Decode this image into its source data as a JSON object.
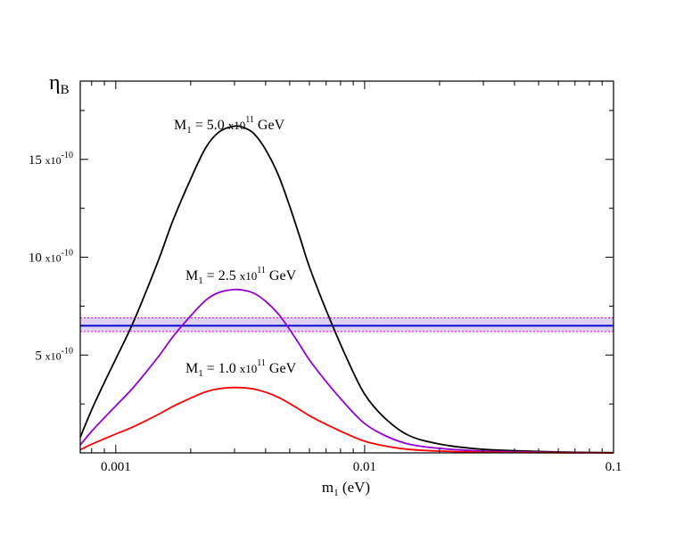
{
  "chart_data": {
    "type": "line",
    "title": "",
    "ylabel": "η",
    "ylabel_sub": "B",
    "xlabel": "m",
    "xlabel_sub": "1",
    "xlabel_unit": "(eV)",
    "x_scale": "log",
    "xlim": [
      0.00072,
      0.1
    ],
    "ylim": [
      0.0,
      1.9e-09
    ],
    "grid": false,
    "x_ticks": [
      {
        "value": 0.001,
        "label": "0.001"
      },
      {
        "value": 0.01,
        "label": "0.01"
      },
      {
        "value": 0.1,
        "label": "0.1"
      }
    ],
    "y_ticks": [
      {
        "value": 5e-10,
        "mantissa": "5",
        "base": "x10",
        "exp": "-10"
      },
      {
        "value": 1e-09,
        "mantissa": "10",
        "base": "x10",
        "exp": "-10"
      },
      {
        "value": 1.5e-09,
        "mantissa": "15",
        "base": "x10",
        "exp": "-10"
      }
    ],
    "series": [
      {
        "name": "M1 = 5.0 x10^11 GeV",
        "label_prefix": "M",
        "label_sub": "1",
        "label_mid": " = 5.0 ",
        "label_base": "x10",
        "label_exp": "11",
        "label_unit": " GeV",
        "color": "#000000",
        "x": [
          0.00072,
          0.0008,
          0.0009,
          0.001,
          0.00115,
          0.0013,
          0.0015,
          0.0017,
          0.002,
          0.0023,
          0.0026,
          0.003,
          0.0033,
          0.0036,
          0.004,
          0.0045,
          0.005,
          0.0055,
          0.006,
          0.007,
          0.0085,
          0.01,
          0.012,
          0.015,
          0.02,
          0.03,
          0.05,
          0.07,
          0.1
        ],
        "y": [
          8e-11,
          2.2e-10,
          3.6e-10,
          4.8e-10,
          6.4e-10,
          8e-10,
          1e-09,
          1.19e-09,
          1.4e-09,
          1.56e-09,
          1.64e-09,
          1.67e-09,
          1.66e-09,
          1.63e-09,
          1.55e-09,
          1.42e-09,
          1.26e-09,
          1.1e-09,
          9.5e-10,
          7.3e-10,
          4.8e-10,
          3e-10,
          1.8e-10,
          9e-11,
          4.5e-11,
          1.8e-11,
          7e-12,
          3e-12,
          1e-12
        ]
      },
      {
        "name": "M1 = 2.5 x10^11 GeV",
        "label_prefix": "M",
        "label_sub": "1",
        "label_mid": " = 2.5 ",
        "label_base": "x10",
        "label_exp": "11",
        "label_unit": " GeV",
        "color": "#9400D3",
        "x": [
          0.00072,
          0.0008,
          0.0009,
          0.001,
          0.00115,
          0.0013,
          0.0015,
          0.0017,
          0.002,
          0.0023,
          0.0026,
          0.003,
          0.0033,
          0.0036,
          0.004,
          0.0045,
          0.005,
          0.0055,
          0.006,
          0.007,
          0.0085,
          0.01,
          0.012,
          0.015,
          0.02,
          0.03,
          0.05,
          0.07,
          0.1
        ],
        "y": [
          4e-11,
          1.1e-10,
          1.8e-10,
          2.4e-10,
          3.2e-10,
          4e-10,
          5e-10,
          5.95e-10,
          7e-10,
          7.8e-10,
          8.2e-10,
          8.35e-10,
          8.3e-10,
          8.15e-10,
          7.75e-10,
          7.1e-10,
          6.3e-10,
          5.5e-10,
          4.75e-10,
          3.65e-10,
          2.4e-10,
          1.5e-10,
          9e-11,
          4.5e-11,
          2.3e-11,
          9e-12,
          3.5e-12,
          1.5e-12,
          5e-13
        ]
      },
      {
        "name": "M1 = 1.0 x10^11 GeV",
        "label_prefix": "M",
        "label_sub": "1",
        "label_mid": " = 1.0 ",
        "label_base": "x10",
        "label_exp": "11",
        "label_unit": " GeV",
        "color": "#FF0000",
        "x": [
          0.00072,
          0.0008,
          0.0009,
          0.001,
          0.00115,
          0.0013,
          0.0015,
          0.0017,
          0.002,
          0.0023,
          0.0026,
          0.003,
          0.0033,
          0.0036,
          0.004,
          0.0045,
          0.005,
          0.0055,
          0.006,
          0.007,
          0.0085,
          0.01,
          0.012,
          0.015,
          0.02,
          0.03,
          0.05,
          0.07,
          0.1
        ],
        "y": [
          1.6e-11,
          4.4e-11,
          7.2e-11,
          9.6e-11,
          1.28e-10,
          1.6e-10,
          2e-10,
          2.38e-10,
          2.8e-10,
          3.12e-10,
          3.28e-10,
          3.34e-10,
          3.32e-10,
          3.26e-10,
          3.1e-10,
          2.84e-10,
          2.52e-10,
          2.2e-10,
          1.9e-10,
          1.46e-10,
          9.6e-11,
          6e-11,
          3.6e-11,
          1.8e-11,
          9e-12,
          3.6e-12,
          1.4e-12,
          6e-13,
          2e-13
        ]
      }
    ],
    "observed_band": {
      "central": 6.5e-10,
      "lower": 6.2e-10,
      "upper": 6.9e-10,
      "line_color": "#0000CD",
      "fill_color": "#C8B4E6",
      "bound_color": "#FF00FF"
    }
  }
}
